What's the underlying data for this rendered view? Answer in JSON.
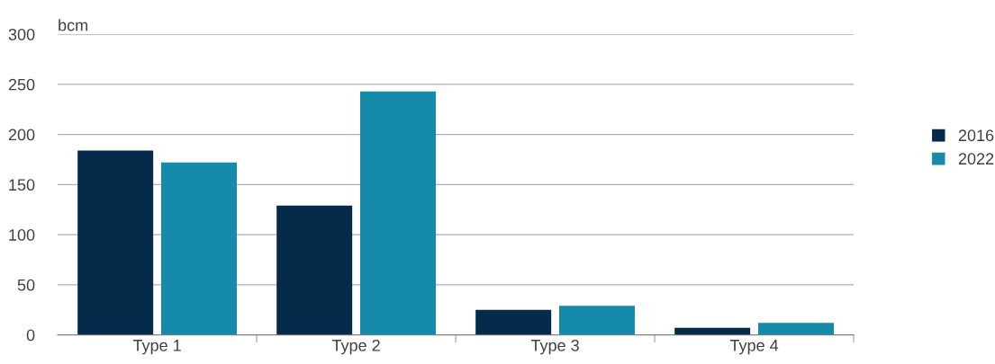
{
  "chart_data": {
    "type": "bar",
    "ylabel": "bcm",
    "categories": [
      "Type 1",
      "Type 2",
      "Type 3",
      "Type 4"
    ],
    "series": [
      {
        "name": "2016",
        "color": "#062a4a",
        "values": [
          184,
          129,
          25,
          7
        ]
      },
      {
        "name": "2022",
        "color": "#168aaa",
        "values": [
          172,
          243,
          29,
          12
        ]
      }
    ],
    "ylim": [
      0,
      300
    ],
    "yticks": [
      0,
      50,
      100,
      150,
      200,
      250,
      300
    ],
    "grid": "y",
    "legend": "right"
  }
}
